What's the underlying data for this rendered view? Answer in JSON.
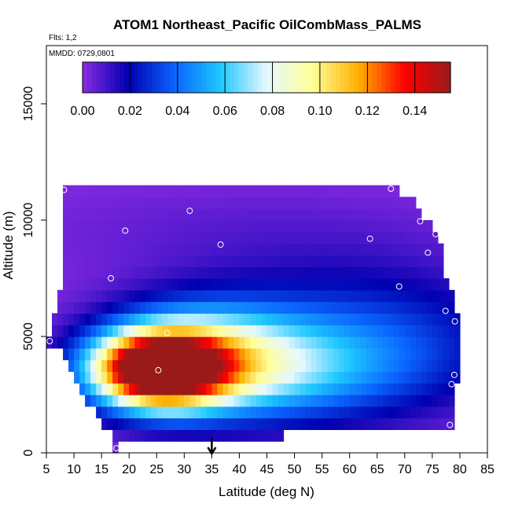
{
  "chart_data": {
    "type": "heatmap",
    "title": "ATOM1 Northeast_Pacific OilCombMass_PALMS",
    "annotations": {
      "flights": "Flts: 1,2",
      "dates": "MMDD: 0729,0801"
    },
    "xlabel": "Latitude (deg N)",
    "ylabel": "Altitude (m)",
    "xlim": [
      5,
      85
    ],
    "ylim": [
      0,
      17500
    ],
    "x_ticks": [
      "5",
      "10",
      "15",
      "20",
      "25",
      "30",
      "35",
      "40",
      "45",
      "50",
      "55",
      "60",
      "65",
      "70",
      "75",
      "80",
      "85"
    ],
    "y_ticks": [
      "0",
      "5000",
      "10000",
      "15000"
    ],
    "colorbar": {
      "range": [
        0.0,
        0.155
      ],
      "tick_labels": [
        "0.00",
        "0.02",
        "0.04",
        "0.06",
        "0.08",
        "0.10",
        "0.12",
        "0.14"
      ],
      "colors": [
        "#8a2be2",
        "#0000b0",
        "#0a64ff",
        "#1ec8ff",
        "#e6f8ff",
        "#ffff9a",
        "#ffb000",
        "#ff0000",
        "#9a1a1a"
      ]
    },
    "grid_cell": {
      "lat_step": 1.0,
      "alt_step": 500
    },
    "region_rows": [
      {
        "alt": [
          0,
          500
        ],
        "lat": [
          17,
          18
        ]
      },
      {
        "alt": [
          500,
          1000
        ],
        "lat": [
          17,
          48
        ]
      },
      {
        "alt": [
          1000,
          1500
        ],
        "lat": [
          15,
          79
        ]
      },
      {
        "alt": [
          1500,
          2000
        ],
        "lat": [
          14,
          79
        ]
      },
      {
        "alt": [
          2000,
          2500
        ],
        "lat": [
          12,
          79
        ]
      },
      {
        "alt": [
          2500,
          3000
        ],
        "lat": [
          11,
          79
        ]
      },
      {
        "alt": [
          3000,
          3500
        ],
        "lat": [
          10,
          80
        ]
      },
      {
        "alt": [
          3500,
          4000
        ],
        "lat": [
          9,
          80
        ]
      },
      {
        "alt": [
          4000,
          4500
        ],
        "lat": [
          8,
          80
        ]
      },
      {
        "alt": [
          4500,
          5000
        ],
        "lat": [
          5,
          80
        ]
      },
      {
        "alt": [
          5000,
          5500
        ],
        "lat": [
          6,
          80
        ]
      },
      {
        "alt": [
          5500,
          6000
        ],
        "lat": [
          6,
          80
        ]
      },
      {
        "alt": [
          6000,
          6500
        ],
        "lat": [
          7,
          79
        ]
      },
      {
        "alt": [
          6500,
          7000
        ],
        "lat": [
          7,
          79
        ]
      },
      {
        "alt": [
          7000,
          7500
        ],
        "lat": [
          8,
          78
        ]
      },
      {
        "alt": [
          7500,
          8000
        ],
        "lat": [
          8,
          77
        ]
      },
      {
        "alt": [
          8000,
          8500
        ],
        "lat": [
          8,
          77
        ]
      },
      {
        "alt": [
          8500,
          9000
        ],
        "lat": [
          8,
          77
        ]
      },
      {
        "alt": [
          9000,
          9500
        ],
        "lat": [
          8,
          76
        ]
      },
      {
        "alt": [
          9500,
          10000
        ],
        "lat": [
          8,
          75
        ]
      },
      {
        "alt": [
          10000,
          10500
        ],
        "lat": [
          8,
          73
        ]
      },
      {
        "alt": [
          10500,
          11000
        ],
        "lat": [
          8,
          72
        ]
      },
      {
        "alt": [
          11000,
          11500
        ],
        "lat": [
          8,
          69
        ]
      }
    ],
    "concentration_fields": [
      {
        "lat": 25.0,
        "alt": 3600,
        "sx": 8.0,
        "sy": 1100,
        "amp": 0.155
      },
      {
        "lat": 33.0,
        "alt": 4200,
        "sx": 12.0,
        "sy": 1600,
        "amp": 0.06
      },
      {
        "lat": 45.0,
        "alt": 3500,
        "sx": 18.0,
        "sy": 1500,
        "amp": 0.04
      },
      {
        "lat": 62.0,
        "alt": 5000,
        "sx": 20.0,
        "sy": 2200,
        "amp": 0.03
      },
      {
        "lat": 40.0,
        "alt": 9500,
        "sx": 30.0,
        "sy": 1500,
        "amp": 0.006
      }
    ],
    "sample_points": [
      {
        "lat": 8.2,
        "alt": 11300
      },
      {
        "lat": 67.5,
        "alt": 11350
      },
      {
        "lat": 31.0,
        "alt": 10400
      },
      {
        "lat": 72.8,
        "alt": 9950
      },
      {
        "lat": 19.3,
        "alt": 9550
      },
      {
        "lat": 77.3,
        "alt": 9700
      },
      {
        "lat": 75.6,
        "alt": 9400
      },
      {
        "lat": 63.7,
        "alt": 9200
      },
      {
        "lat": 36.6,
        "alt": 8950
      },
      {
        "lat": 74.2,
        "alt": 8600
      },
      {
        "lat": 16.7,
        "alt": 7500
      },
      {
        "lat": 69.0,
        "alt": 7150
      },
      {
        "lat": 77.4,
        "alt": 6100
      },
      {
        "lat": 79.1,
        "alt": 5650
      },
      {
        "lat": 26.9,
        "alt": 5150
      },
      {
        "lat": 5.6,
        "alt": 4800
      },
      {
        "lat": 25.3,
        "alt": 3550
      },
      {
        "lat": 79.0,
        "alt": 3350
      },
      {
        "lat": 78.5,
        "alt": 2950
      },
      {
        "lat": 78.2,
        "alt": 1200
      },
      {
        "lat": 17.7,
        "alt": 200
      }
    ],
    "arrow_marker": {
      "lat": 35.0
    }
  }
}
